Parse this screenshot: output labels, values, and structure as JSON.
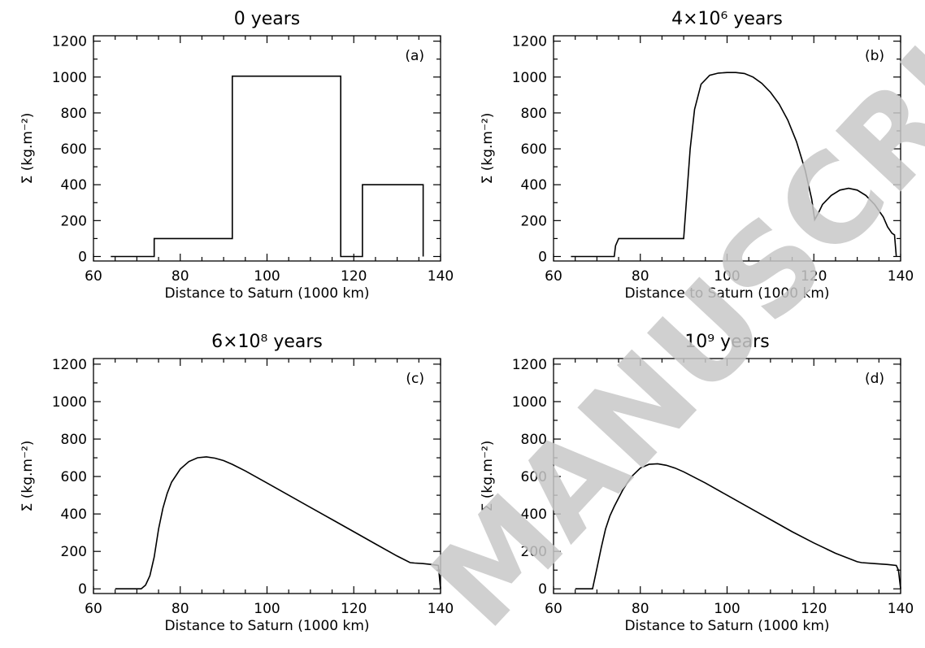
{
  "watermark": "MANUSCRIPT",
  "chart_data": [
    {
      "type": "line",
      "title": "0 years",
      "panel_label": "(a)",
      "xlabel": "Distance to Saturn (1000 km)",
      "ylabel": "Σ (kg.m⁻²)",
      "xlim": [
        60,
        140
      ],
      "ylim": [
        -25,
        1230
      ],
      "xticks": [
        60,
        80,
        100,
        120,
        140
      ],
      "yticks": [
        0,
        200,
        400,
        600,
        800,
        1000,
        1200
      ],
      "series": [
        {
          "x": [
            64,
            74,
            74,
            92,
            92,
            117,
            117,
            122,
            122,
            136,
            136
          ],
          "y": [
            0,
            0,
            100,
            100,
            1005,
            1005,
            0,
            0,
            400,
            400,
            0
          ]
        }
      ]
    },
    {
      "type": "line",
      "title": "4×10⁶ years",
      "panel_label": "(b)",
      "xlabel": "Distance to Saturn (1000 km)",
      "ylabel": "Σ (kg.m⁻²)",
      "xlim": [
        60,
        140
      ],
      "ylim": [
        -25,
        1230
      ],
      "xticks": [
        60,
        80,
        100,
        120,
        140
      ],
      "yticks": [
        0,
        200,
        400,
        600,
        800,
        1000,
        1200
      ],
      "series": [
        {
          "x": [
            64,
            74,
            74.3,
            75,
            90,
            90.6,
            91.5,
            92.5,
            94,
            96,
            98,
            100,
            102,
            104,
            106,
            108,
            110,
            112,
            114,
            116,
            118,
            119.5,
            120.2,
            121,
            122,
            124,
            126,
            128,
            130,
            132,
            134,
            136,
            137,
            138,
            138.6,
            139
          ],
          "y": [
            0,
            0,
            60,
            100,
            100,
            300,
            600,
            820,
            960,
            1010,
            1022,
            1025,
            1025,
            1020,
            1000,
            965,
            915,
            850,
            760,
            640,
            480,
            320,
            205,
            240,
            290,
            340,
            370,
            380,
            370,
            340,
            290,
            220,
            165,
            130,
            120,
            0
          ]
        }
      ]
    },
    {
      "type": "line",
      "title": "6×10⁸ years",
      "panel_label": "(c)",
      "xlabel": "Distance to Saturn (1000 km)",
      "ylabel": "Σ (kg.m⁻²)",
      "xlim": [
        60,
        140
      ],
      "ylim": [
        -25,
        1230
      ],
      "xticks": [
        60,
        80,
        100,
        120,
        140
      ],
      "yticks": [
        0,
        200,
        400,
        600,
        800,
        1000,
        1200
      ],
      "series": [
        {
          "x": [
            65,
            71,
            72,
            73,
            74,
            75,
            76,
            77,
            78,
            80,
            82,
            84,
            86,
            88,
            90,
            92,
            95,
            100,
            105,
            110,
            115,
            120,
            125,
            130,
            133,
            134,
            136,
            138,
            139.5,
            140
          ],
          "y": [
            0,
            0,
            20,
            70,
            170,
            320,
            430,
            510,
            570,
            640,
            680,
            700,
            705,
            698,
            685,
            665,
            630,
            565,
            500,
            435,
            370,
            305,
            240,
            175,
            140,
            138,
            135,
            130,
            125,
            0
          ]
        }
      ]
    },
    {
      "type": "line",
      "title": "10⁹ years",
      "panel_label": "(d)",
      "xlabel": "Distance to Saturn (1000 km)",
      "ylabel": "Σ (kg.m⁻²)",
      "xlim": [
        60,
        140
      ],
      "ylim": [
        -25,
        1230
      ],
      "xticks": [
        60,
        80,
        100,
        120,
        140
      ],
      "yticks": [
        0,
        200,
        400,
        600,
        800,
        1000,
        1200
      ],
      "series": [
        {
          "x": [
            65,
            69,
            70,
            71,
            72,
            73,
            74,
            76,
            78,
            80,
            82,
            84,
            86,
            88,
            90,
            95,
            100,
            105,
            110,
            115,
            120,
            125,
            130,
            131,
            134,
            137,
            139,
            139.5,
            140
          ],
          "y": [
            0,
            0,
            110,
            220,
            320,
            390,
            440,
            530,
            600,
            645,
            665,
            668,
            660,
            645,
            625,
            565,
            500,
            435,
            370,
            305,
            245,
            190,
            145,
            140,
            135,
            130,
            125,
            100,
            0
          ]
        }
      ]
    }
  ]
}
